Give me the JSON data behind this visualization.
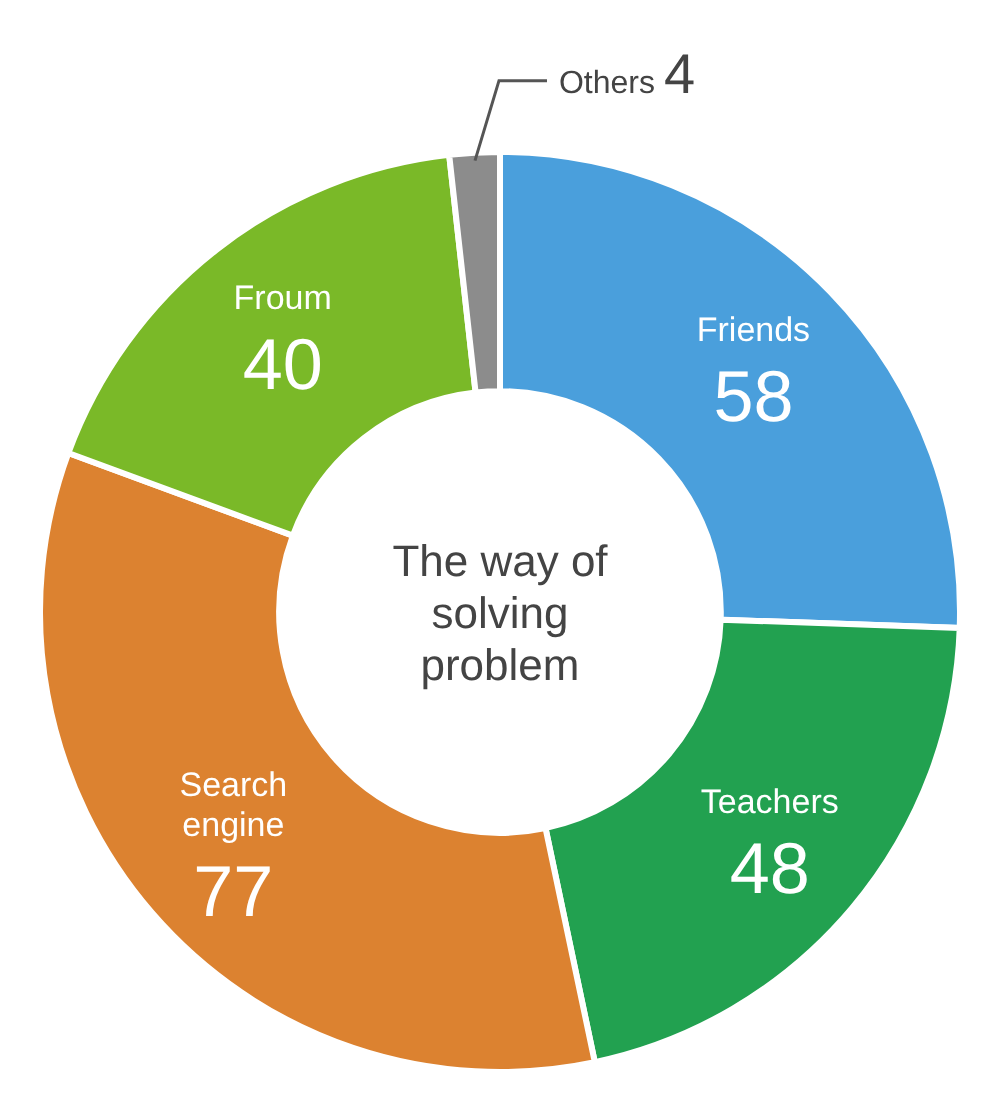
{
  "chart_data": {
    "type": "donut",
    "title": "The way of solving problem",
    "categories": [
      "Friends",
      "Teachers",
      "Search engine",
      "Froum",
      "Others"
    ],
    "values": [
      58,
      48,
      77,
      40,
      4
    ],
    "colors": [
      "#4a9fdc",
      "#22a150",
      "#dc8230",
      "#7ab928",
      "#8c8c8c"
    ],
    "data_labels": true
  }
}
